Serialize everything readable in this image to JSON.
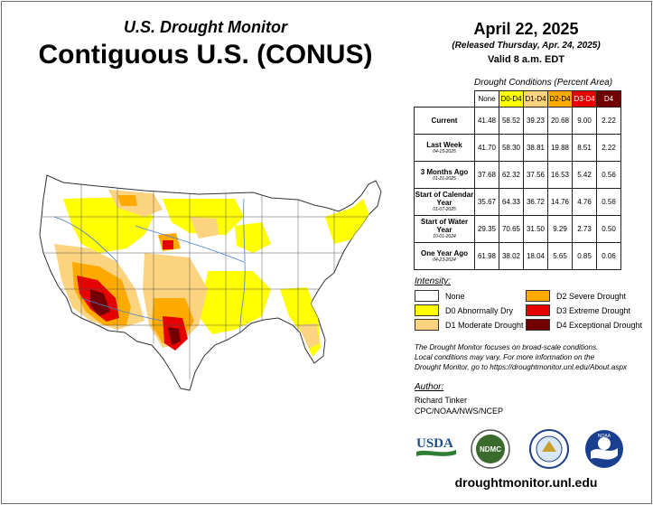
{
  "header": {
    "suptitle": "U.S. Drought Monitor",
    "title": "Contiguous U.S. (CONUS)",
    "date": "April 22, 2025",
    "released": "(Released Thursday, Apr. 24, 2025)",
    "valid": "Valid 8 a.m. EDT"
  },
  "table": {
    "caption": "Drought Conditions (Percent Area)",
    "columns": [
      "None",
      "D0-D4",
      "D1-D4",
      "D2-D4",
      "D3-D4",
      "D4"
    ],
    "rows": [
      {
        "label": "Current",
        "date": "",
        "values": [
          "41.48",
          "58.52",
          "39.23",
          "20.68",
          "9.00",
          "2.22"
        ]
      },
      {
        "label": "Last Week",
        "date": "04-15-2025",
        "values": [
          "41.70",
          "58.30",
          "38.81",
          "19.88",
          "8.51",
          "2.22"
        ]
      },
      {
        "label": "3 Months Ago",
        "date": "01-21-2025",
        "values": [
          "37.68",
          "62.32",
          "37.56",
          "16.53",
          "5.42",
          "0.56"
        ]
      },
      {
        "label": "Start of Calendar Year",
        "date": "01-07-2025",
        "values": [
          "35.67",
          "64.33",
          "36.72",
          "14.76",
          "4.76",
          "0.56"
        ]
      },
      {
        "label": "Start of Water Year",
        "date": "10-01-2024",
        "values": [
          "29.35",
          "70.65",
          "31.50",
          "9.29",
          "2.73",
          "0.50"
        ]
      },
      {
        "label": "One Year Ago",
        "date": "04-23-2024",
        "values": [
          "61.98",
          "38.02",
          "18.04",
          "5.65",
          "0.85",
          "0.06"
        ]
      }
    ]
  },
  "legend": {
    "title": "Intensity:",
    "items": [
      {
        "label": "None",
        "color": "#ffffff"
      },
      {
        "label": "D0 Abnormally Dry",
        "color": "#ffff00"
      },
      {
        "label": "D1 Moderate Drought",
        "color": "#fcd37f"
      },
      {
        "label": "D2 Severe Drought",
        "color": "#ffaa00"
      },
      {
        "label": "D3 Extreme Drought",
        "color": "#e60000"
      },
      {
        "label": "D4 Exceptional Drought",
        "color": "#730000"
      }
    ]
  },
  "note": {
    "line1": "The Drought Monitor focuses on broad-scale conditions.",
    "line2": "Local conditions may vary. For more information on the",
    "line3": "Drought Monitor, go to https://droughtmonitor.unl.edu/About.aspx"
  },
  "author": {
    "title": "Author:",
    "name": "Richard Tinker",
    "org": "CPC/NOAA/NWS/NCEP"
  },
  "logos": {
    "usda": "USDA",
    "ndmc": "NDMC",
    "noaa": "NOAA"
  },
  "footer": {
    "website": "droughtmonitor.unl.edu"
  }
}
